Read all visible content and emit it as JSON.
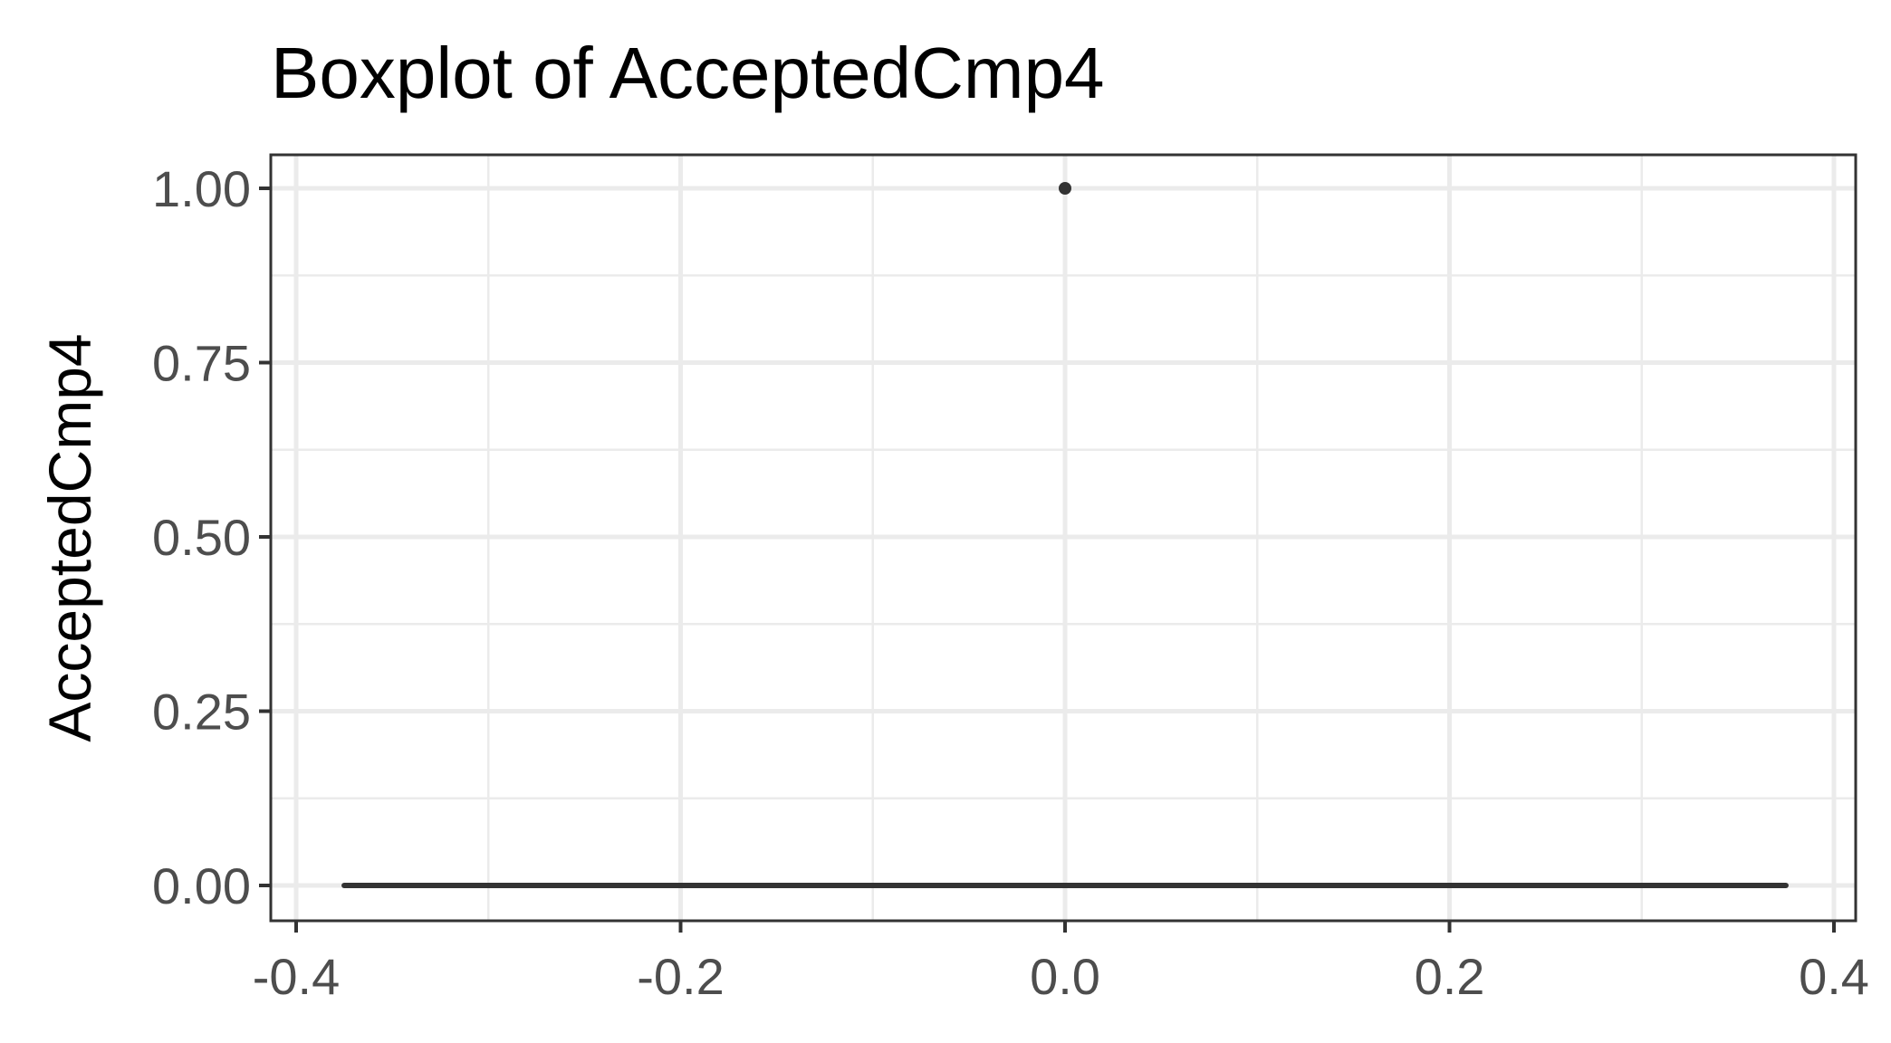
{
  "chart_data": {
    "type": "boxplot",
    "title": "Boxplot of AcceptedCmp4",
    "xlabel": "",
    "ylabel": "AcceptedCmp4",
    "xlim": [
      -0.4,
      0.4
    ],
    "ylim": [
      0,
      1
    ],
    "x_ticks": [
      "-0.4",
      "-0.2",
      "0.0",
      "0.2",
      "0.4"
    ],
    "y_ticks": [
      "0.00",
      "0.25",
      "0.50",
      "0.75",
      "1.00"
    ],
    "x_tick_values": [
      -0.4,
      -0.2,
      0.0,
      0.2,
      0.4
    ],
    "y_tick_values": [
      0,
      0.25,
      0.5,
      0.75,
      1.0
    ],
    "box": {
      "x_center": 0,
      "box_width": 0.75,
      "min": 0,
      "q1": 0,
      "median": 0,
      "q3": 0,
      "max": 0,
      "outliers": [
        1
      ]
    },
    "grid": true,
    "colors": {
      "box": "#333333",
      "grid": "#ebebeb",
      "tick_text": "#4d4d4d"
    }
  }
}
